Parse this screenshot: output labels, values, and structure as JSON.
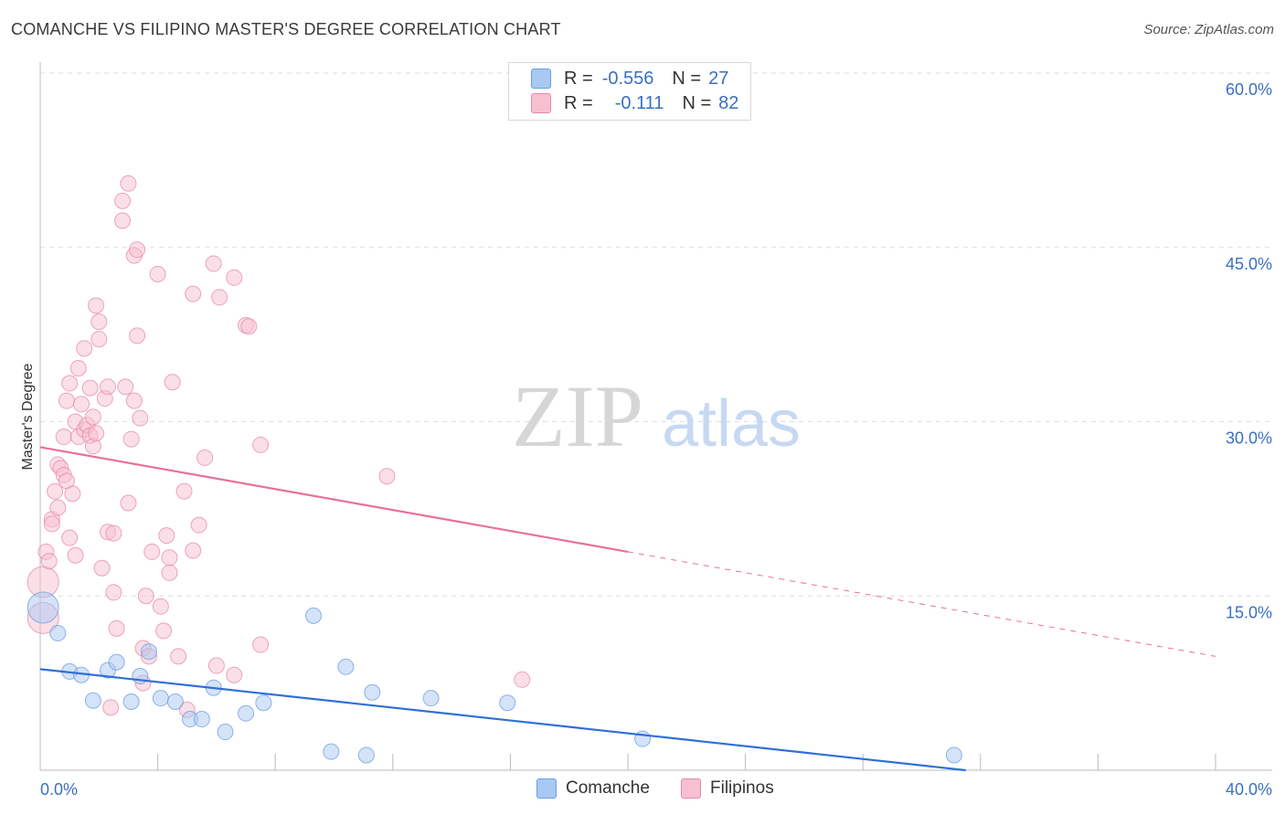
{
  "title": "COMANCHE VS FILIPINO MASTER'S DEGREE CORRELATION CHART",
  "source": "Source: ZipAtlas.com",
  "watermark": {
    "zip": "ZIP",
    "atlas": "atlas"
  },
  "legend": {
    "rows": [
      {
        "r_label": "R =",
        "r_value": "-0.556",
        "n_label": "N =",
        "n_value": "27",
        "color": "#a9c8f2",
        "border": "#6a9ee0"
      },
      {
        "r_label": "R =",
        "r_value": "-0.111",
        "n_label": "N =",
        "n_value": "82",
        "color": "#f7bfd0",
        "border": "#e48aa8"
      }
    ]
  },
  "bottom_legend": [
    {
      "label": "Comanche",
      "color": "#a9c8f2",
      "border": "#6a9ee0"
    },
    {
      "label": "Filipinos",
      "color": "#f7bfd0",
      "border": "#e48aa8"
    }
  ],
  "chart_data": {
    "type": "scatter",
    "title": "COMANCHE VS FILIPINO MASTER'S DEGREE CORRELATION CHART",
    "xlabel": "",
    "ylabel": "Master's Degree",
    "xlim": [
      0,
      40
    ],
    "ylim": [
      0,
      60
    ],
    "x_tick_labels": [
      {
        "value": 0,
        "label": "0.0%"
      },
      {
        "value": 40,
        "label": "40.0%"
      }
    ],
    "y_tick_labels": [
      {
        "value": 15,
        "label": "15.0%"
      },
      {
        "value": 30,
        "label": "30.0%"
      },
      {
        "value": 45,
        "label": "45.0%"
      },
      {
        "value": 60,
        "label": "60.0%"
      }
    ],
    "x_minor_ticks": [
      0,
      4,
      8,
      12,
      16,
      20,
      24,
      28,
      32,
      36,
      40
    ],
    "grid": true,
    "series": [
      {
        "name": "Comanche",
        "color": "#6a9ee0",
        "fill": "#a9c8f2",
        "R": -0.556,
        "N": 27,
        "points": [
          [
            0.1,
            14.0
          ],
          [
            0.6,
            11.8
          ],
          [
            1.0,
            8.5
          ],
          [
            1.4,
            8.2
          ],
          [
            1.8,
            6.0
          ],
          [
            2.3,
            8.6
          ],
          [
            2.6,
            9.3
          ],
          [
            3.1,
            5.9
          ],
          [
            3.4,
            8.1
          ],
          [
            3.7,
            10.2
          ],
          [
            4.1,
            6.2
          ],
          [
            4.6,
            5.9
          ],
          [
            5.1,
            4.4
          ],
          [
            5.5,
            4.4
          ],
          [
            5.9,
            7.1
          ],
          [
            6.3,
            3.3
          ],
          [
            7.0,
            4.9
          ],
          [
            7.6,
            5.8
          ],
          [
            9.3,
            13.3
          ],
          [
            9.9,
            1.6
          ],
          [
            10.4,
            8.9
          ],
          [
            11.1,
            1.3
          ],
          [
            11.3,
            6.7
          ],
          [
            13.3,
            6.2
          ],
          [
            15.9,
            5.8
          ],
          [
            20.5,
            2.7
          ],
          [
            31.1,
            1.3
          ]
        ],
        "big_points": [
          0
        ],
        "trend": {
          "x0": 0,
          "y0": 8.7,
          "x1": 31.5,
          "y1": 0.0,
          "dash_to": null
        }
      },
      {
        "name": "Filipinos",
        "color": "#e48aa8",
        "fill": "#f7bfd0",
        "R": -0.111,
        "N": 82,
        "points": [
          [
            0.1,
            16.2
          ],
          [
            0.1,
            13.1
          ],
          [
            0.2,
            18.8
          ],
          [
            0.3,
            18.0
          ],
          [
            0.4,
            21.6
          ],
          [
            0.4,
            21.2
          ],
          [
            0.5,
            24.0
          ],
          [
            0.6,
            22.6
          ],
          [
            0.6,
            26.3
          ],
          [
            0.7,
            26.0
          ],
          [
            0.8,
            25.4
          ],
          [
            0.8,
            28.7
          ],
          [
            0.9,
            24.9
          ],
          [
            0.9,
            31.8
          ],
          [
            1.0,
            33.3
          ],
          [
            1.1,
            23.8
          ],
          [
            1.2,
            30.0
          ],
          [
            1.3,
            28.7
          ],
          [
            1.3,
            34.6
          ],
          [
            1.4,
            31.5
          ],
          [
            1.5,
            29.3
          ],
          [
            1.5,
            36.3
          ],
          [
            1.6,
            29.7
          ],
          [
            1.7,
            32.9
          ],
          [
            1.7,
            28.8
          ],
          [
            1.8,
            27.9
          ],
          [
            1.8,
            30.4
          ],
          [
            1.9,
            29.0
          ],
          [
            1.9,
            40.0
          ],
          [
            2.0,
            37.1
          ],
          [
            2.0,
            38.6
          ],
          [
            2.1,
            17.4
          ],
          [
            2.2,
            32.0
          ],
          [
            2.3,
            20.5
          ],
          [
            2.3,
            33.0
          ],
          [
            2.4,
            5.4
          ],
          [
            2.5,
            20.4
          ],
          [
            2.5,
            15.3
          ],
          [
            2.6,
            12.2
          ],
          [
            2.8,
            47.3
          ],
          [
            2.8,
            49.0
          ],
          [
            3.0,
            50.5
          ],
          [
            3.1,
            28.5
          ],
          [
            3.2,
            31.8
          ],
          [
            3.2,
            44.3
          ],
          [
            3.3,
            37.4
          ],
          [
            3.3,
            44.8
          ],
          [
            3.4,
            30.3
          ],
          [
            3.5,
            7.5
          ],
          [
            3.5,
            10.5
          ],
          [
            3.6,
            15.0
          ],
          [
            3.7,
            9.8
          ],
          [
            3.8,
            18.8
          ],
          [
            4.0,
            42.7
          ],
          [
            4.1,
            14.1
          ],
          [
            4.3,
            20.2
          ],
          [
            4.4,
            18.3
          ],
          [
            4.4,
            17.0
          ],
          [
            4.5,
            33.4
          ],
          [
            4.7,
            9.8
          ],
          [
            4.9,
            24.0
          ],
          [
            5.0,
            5.2
          ],
          [
            5.2,
            18.9
          ],
          [
            5.4,
            21.1
          ],
          [
            5.6,
            26.9
          ],
          [
            5.9,
            43.6
          ],
          [
            6.1,
            40.7
          ],
          [
            6.6,
            42.4
          ],
          [
            6.6,
            8.2
          ],
          [
            7.0,
            38.3
          ],
          [
            7.1,
            38.2
          ],
          [
            7.5,
            28.0
          ],
          [
            7.5,
            10.8
          ],
          [
            11.8,
            25.3
          ],
          [
            16.4,
            7.8
          ],
          [
            5.2,
            41.0
          ],
          [
            2.9,
            33.0
          ],
          [
            1.2,
            18.5
          ],
          [
            4.2,
            12.0
          ],
          [
            6.0,
            9.0
          ],
          [
            3.0,
            23.0
          ],
          [
            1.0,
            20.0
          ]
        ],
        "big_points": [
          0,
          1
        ],
        "trend": {
          "x0": 0,
          "y0": 27.8,
          "x1": 20.0,
          "y1": 18.8,
          "dash_to": {
            "x": 40,
            "y": 9.8
          }
        }
      }
    ]
  }
}
